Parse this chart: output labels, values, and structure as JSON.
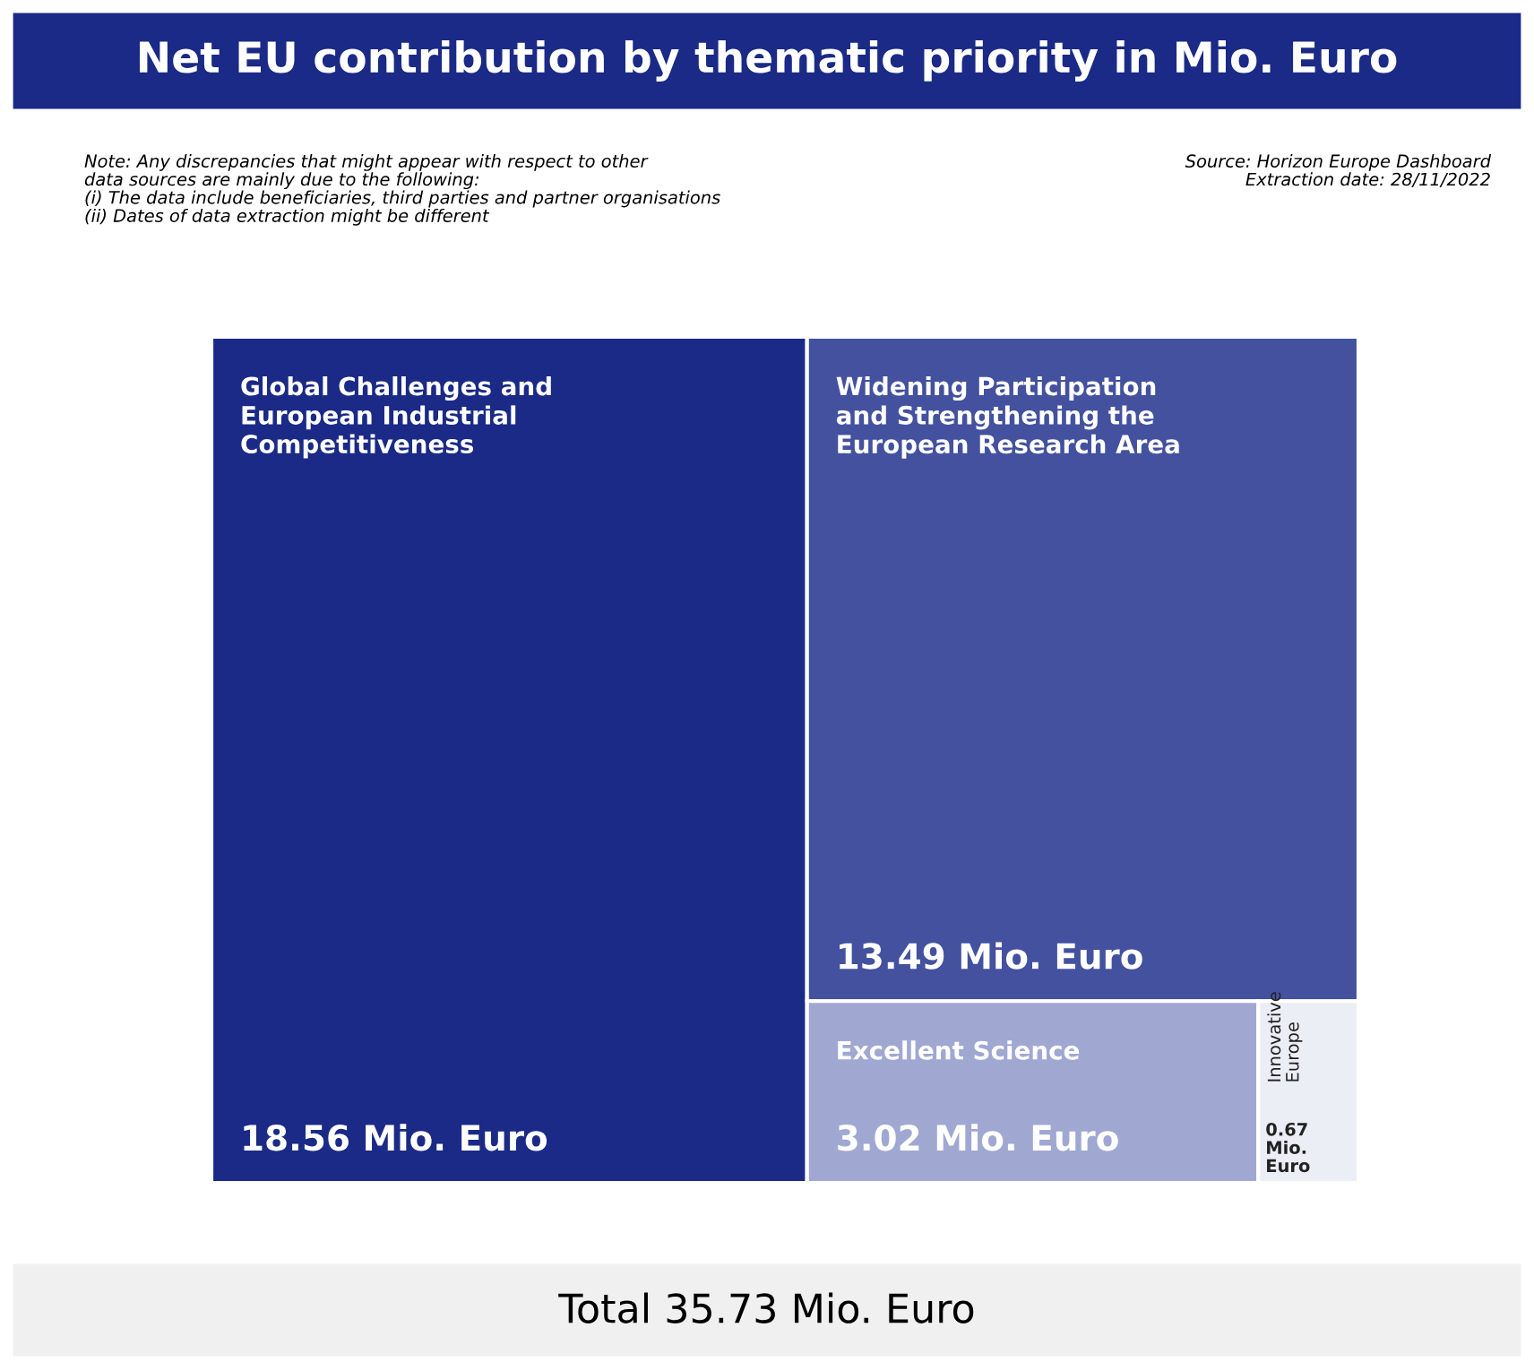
{
  "chart_data": {
    "type": "other",
    "title": "Net EU contribution by thematic priority in Mio. Euro",
    "categories": [
      "Global Challenges and European Industrial Competitiveness",
      "Widening Participation and Strengthening the European Research Area",
      "Excellent Science",
      "Innovative Europe"
    ],
    "values": [
      18.56,
      13.49,
      3.02,
      0.67
    ],
    "value_labels": [
      "18.56 Mio. Euro",
      "13.49 Mio. Euro",
      "3.02 Mio. Euro",
      "0.67 Mio. Euro"
    ],
    "colors": [
      "#1a2a86",
      "#43519f",
      "#a0a8d2",
      "#eceef6"
    ],
    "annotations": [
      "Note: Any discrepancies that might appear with respect to other\ndata sources are mainly due to the following:\n(i) The data include beneficiaries, third parties and partner organisations\n(ii) Dates of data extraction might be different",
      "Source: Horizon Europe Dashboard\nExtraction date: 28/11/2022",
      "Total 35.73 Mio. Euro"
    ]
  }
}
